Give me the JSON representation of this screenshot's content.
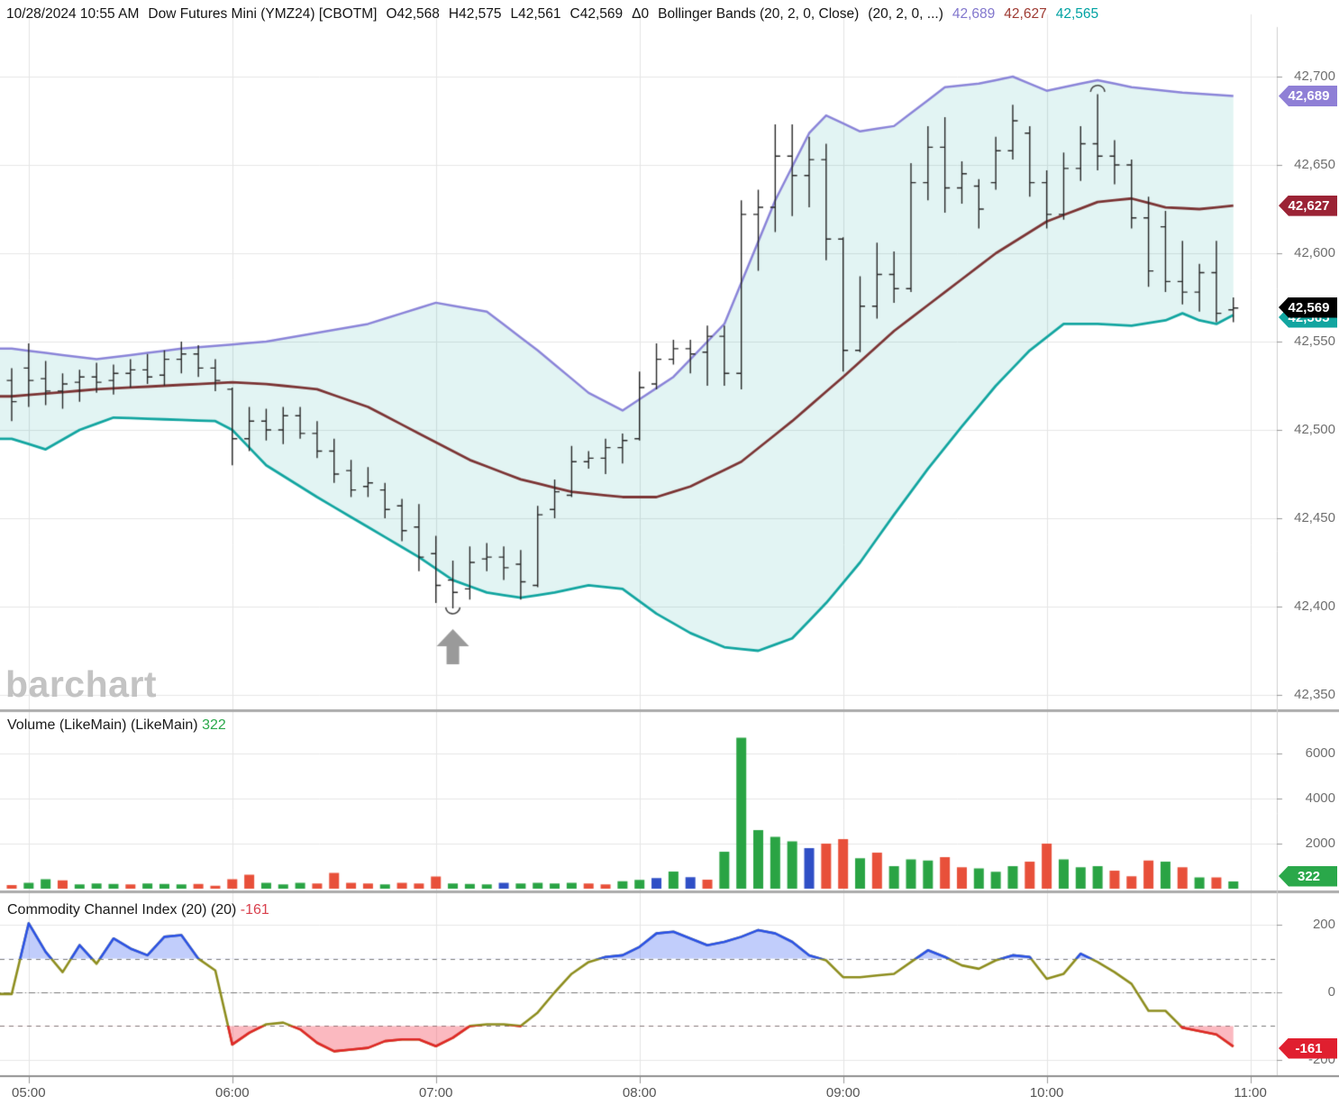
{
  "header": {
    "datetime": "10/28/2024 10:55 AM",
    "symbol": "Dow Futures Mini (YMZ24) [CBOTM]",
    "open": "O42,568",
    "high": "H42,575",
    "low": "L42,561",
    "close": "C42,569",
    "change": "Δ0",
    "study": "Bollinger Bands (20, 2, 0, Close)",
    "study_params": "(20, 2, 0, ...)",
    "band_upper_value": "42,689",
    "band_middle_value": "42,627",
    "band_lower_value": "42,565"
  },
  "watermark": "barchart",
  "panels": {
    "volume_title": "Volume (LikeMain)  (LikeMain)",
    "volume_value": "322",
    "cci_title": "Commodity Channel Index (20)  (20)",
    "cci_value": "-161"
  },
  "axes": {
    "price_ticks": [
      "42,700",
      "42,650",
      "42,600",
      "42,550",
      "42,500",
      "42,450",
      "42,400",
      "42,350"
    ],
    "price_tick_values": [
      42700,
      42650,
      42600,
      42550,
      42500,
      42450,
      42400,
      42350
    ],
    "volume_ticks": [
      "6000",
      "4000",
      "2000"
    ],
    "volume_tick_values": [
      6000,
      4000,
      2000
    ],
    "cci_ticks": [
      "200",
      "0",
      "-200"
    ],
    "cci_tick_values": [
      200,
      0,
      -200
    ],
    "time_ticks": [
      "05:00",
      "06:00",
      "07:00",
      "08:00",
      "09:00",
      "10:00",
      "11:00"
    ]
  },
  "badges": {
    "upper": {
      "label": "42,689",
      "color": "#8f7fd6"
    },
    "middle": {
      "label": "42,627",
      "color": "#9b2335"
    },
    "close": {
      "label": "42,569",
      "color": "#000000"
    },
    "lower": {
      "label": "42,565",
      "color": "#12a5a0"
    },
    "volume": {
      "label": "322",
      "color": "#2aa84a"
    },
    "cci": {
      "label": "-161",
      "color": "#e01f2f"
    }
  },
  "colors": {
    "band_upper": "#8a84d8",
    "band_middle": "#7b3434",
    "band_lower": "#12a5a0",
    "band_fill": "rgba(18,165,160,0.12)",
    "bar": "#262626",
    "vol_up": "#2aa444",
    "vol_down": "#e8503a",
    "vol_neutral": "#2f4fc6",
    "cci_line": "#8d8d1e",
    "cci_high": "#2b52e8",
    "cci_high_fill": "rgba(100,130,245,0.40)",
    "cci_low": "#e02828",
    "cci_low_fill": "rgba(247,100,115,0.45)",
    "grid": "#e6e6e6",
    "separator": "#ababab"
  },
  "chart_data": {
    "type": "ohlc+volume+cci",
    "title": "Dow Futures Mini (YMZ24) 5-minute bars with Bollinger Bands (20,2,0,Close)",
    "x_range": [
      "04:55",
      "10:55"
    ],
    "price_ylim": [
      42350,
      42700
    ],
    "volume_ylim": [
      0,
      8000
    ],
    "cci_ylim": [
      -230,
      240
    ],
    "cci_thresholds": {
      "upper": 100,
      "zero": 0,
      "lower": -100
    },
    "times": [
      "04:55",
      "05:00",
      "05:05",
      "05:10",
      "05:15",
      "05:20",
      "05:25",
      "05:30",
      "05:35",
      "05:40",
      "05:45",
      "05:50",
      "05:55",
      "06:00",
      "06:05",
      "06:10",
      "06:15",
      "06:20",
      "06:25",
      "06:30",
      "06:35",
      "06:40",
      "06:45",
      "06:50",
      "06:55",
      "07:00",
      "07:05",
      "07:10",
      "07:15",
      "07:20",
      "07:25",
      "07:30",
      "07:35",
      "07:40",
      "07:45",
      "07:50",
      "07:55",
      "08:00",
      "08:05",
      "08:10",
      "08:15",
      "08:20",
      "08:25",
      "08:30",
      "08:35",
      "08:40",
      "08:45",
      "08:50",
      "08:55",
      "09:00",
      "09:05",
      "09:10",
      "09:15",
      "09:20",
      "09:25",
      "09:30",
      "09:35",
      "09:40",
      "09:45",
      "09:50",
      "09:55",
      "10:00",
      "10:05",
      "10:10",
      "10:15",
      "10:20",
      "10:25",
      "10:30",
      "10:35",
      "10:40",
      "10:45",
      "10:50",
      "10:55"
    ],
    "ohlc": [
      [
        42528,
        42535,
        42505,
        42516
      ],
      [
        42535,
        42549,
        42513,
        42528
      ],
      [
        42529,
        42539,
        42514,
        42522
      ],
      [
        42522,
        42532,
        42512,
        42526
      ],
      [
        42527,
        42534,
        42516,
        42530
      ],
      [
        42530,
        42538,
        42521,
        42527
      ],
      [
        42528,
        42537,
        42520,
        42532
      ],
      [
        42532,
        42540,
        42524,
        42534
      ],
      [
        42534,
        42543,
        42526,
        42530
      ],
      [
        42531,
        42545,
        42525,
        42540
      ],
      [
        42540,
        42550,
        42532,
        42543
      ],
      [
        42543,
        42548,
        42530,
        42535
      ],
      [
        42535,
        42540,
        42522,
        42528
      ],
      [
        42523,
        42524,
        42480,
        42495
      ],
      [
        42495,
        42513,
        42488,
        42505
      ],
      [
        42505,
        42512,
        42494,
        42500
      ],
      [
        42500,
        42513,
        42492,
        42508
      ],
      [
        42508,
        42513,
        42495,
        42498
      ],
      [
        42498,
        42505,
        42484,
        42488
      ],
      [
        42488,
        42495,
        42470,
        42475
      ],
      [
        42477,
        42483,
        42462,
        42466
      ],
      [
        42468,
        42479,
        42462,
        42470
      ],
      [
        42466,
        42470,
        42450,
        42455
      ],
      [
        42457,
        42461,
        42437,
        42443
      ],
      [
        42445,
        42458,
        42420,
        42428
      ],
      [
        42430,
        42440,
        42402,
        42412
      ],
      [
        42415,
        42426,
        42399,
        42408
      ],
      [
        42410,
        42434,
        42404,
        42425
      ],
      [
        42427,
        42436,
        42420,
        42428
      ],
      [
        42428,
        42434,
        42415,
        42422
      ],
      [
        42424,
        42432,
        42404,
        42414
      ],
      [
        42412,
        42457,
        42411,
        42452
      ],
      [
        42455,
        42472,
        42450,
        42465
      ],
      [
        42463,
        42491,
        42462,
        42482
      ],
      [
        42482,
        42488,
        42478,
        42484
      ],
      [
        42484,
        42495,
        42475,
        42490
      ],
      [
        42490,
        42498,
        42481,
        42494
      ],
      [
        42495,
        42533,
        42494,
        42524
      ],
      [
        42526,
        42549,
        42523,
        42540
      ],
      [
        42540,
        42551,
        42537,
        42546
      ],
      [
        42546,
        42551,
        42532,
        42543
      ],
      [
        42544,
        42559,
        42525,
        42553
      ],
      [
        42553,
        42559,
        42525,
        42532
      ],
      [
        42532,
        42630,
        42523,
        42622
      ],
      [
        42622,
        42636,
        42590,
        42626
      ],
      [
        42626,
        42673,
        42612,
        42655
      ],
      [
        42655,
        42673,
        42621,
        42644
      ],
      [
        42644,
        42666,
        42626,
        42653
      ],
      [
        42653,
        42662,
        42596,
        42608
      ],
      [
        42608,
        42609,
        42533,
        42545
      ],
      [
        42545,
        42587,
        42544,
        42570
      ],
      [
        42570,
        42606,
        42563,
        42588
      ],
      [
        42588,
        42601,
        42572,
        42580
      ],
      [
        42580,
        42651,
        42578,
        42640
      ],
      [
        42640,
        42672,
        42630,
        42660
      ],
      [
        42660,
        42677,
        42623,
        42637
      ],
      [
        42637,
        42652,
        42628,
        42645
      ],
      [
        42638,
        42642,
        42614,
        42625
      ],
      [
        42640,
        42666,
        42636,
        42658
      ],
      [
        42658,
        42684,
        42653,
        42675
      ],
      [
        42668,
        42672,
        42632,
        42640
      ],
      [
        42640,
        42647,
        42614,
        42622
      ],
      [
        42622,
        42657,
        42619,
        42648
      ],
      [
        42648,
        42672,
        42641,
        42662
      ],
      [
        42662,
        42690,
        42647,
        42655
      ],
      [
        42655,
        42664,
        42639,
        42650
      ],
      [
        42650,
        42653,
        42614,
        42620
      ],
      [
        42620,
        42632,
        42581,
        42590
      ],
      [
        42615,
        42624,
        42578,
        42584
      ],
      [
        42584,
        42607,
        42571,
        42578
      ],
      [
        42578,
        42594,
        42567,
        42589
      ],
      [
        42589,
        42607,
        42561,
        42566
      ],
      [
        42568,
        42575,
        42561,
        42569
      ]
    ],
    "bollinger": {
      "upper_keypoints": [
        [
          0,
          42546
        ],
        [
          5,
          42540
        ],
        [
          10,
          42546
        ],
        [
          15,
          42550
        ],
        [
          21,
          42560
        ],
        [
          25,
          42572
        ],
        [
          28,
          42567
        ],
        [
          31,
          42545
        ],
        [
          34,
          42521
        ],
        [
          36,
          42511
        ],
        [
          39,
          42530
        ],
        [
          42,
          42560
        ],
        [
          45,
          42630
        ],
        [
          47,
          42668
        ],
        [
          48,
          42678
        ],
        [
          50,
          42669
        ],
        [
          52,
          42672
        ],
        [
          55,
          42694
        ],
        [
          57,
          42696
        ],
        [
          59,
          42700
        ],
        [
          61,
          42692
        ],
        [
          64,
          42698
        ],
        [
          66,
          42694
        ],
        [
          69,
          42691
        ],
        [
          72,
          42689
        ]
      ],
      "middle_keypoints": [
        [
          0,
          42519
        ],
        [
          5,
          42523
        ],
        [
          9,
          42525
        ],
        [
          13,
          42527
        ],
        [
          15,
          42526
        ],
        [
          18,
          42523
        ],
        [
          21,
          42513
        ],
        [
          24,
          42498
        ],
        [
          27,
          42483
        ],
        [
          30,
          42472
        ],
        [
          33,
          42465
        ],
        [
          36,
          42462
        ],
        [
          38,
          42462
        ],
        [
          40,
          42468
        ],
        [
          43,
          42482
        ],
        [
          46,
          42505
        ],
        [
          49,
          42530
        ],
        [
          52,
          42556
        ],
        [
          55,
          42578
        ],
        [
          58,
          42600
        ],
        [
          61,
          42618
        ],
        [
          64,
          42629
        ],
        [
          66,
          42631
        ],
        [
          68,
          42626
        ],
        [
          70,
          42625
        ],
        [
          72,
          42627
        ]
      ],
      "lower_keypoints": [
        [
          0,
          42495
        ],
        [
          2,
          42489
        ],
        [
          4,
          42500
        ],
        [
          6,
          42507
        ],
        [
          9,
          42506
        ],
        [
          12,
          42505
        ],
        [
          13,
          42500
        ],
        [
          15,
          42480
        ],
        [
          18,
          42462
        ],
        [
          21,
          42445
        ],
        [
          24,
          42428
        ],
        [
          26,
          42415
        ],
        [
          28,
          42408
        ],
        [
          30,
          42405
        ],
        [
          32,
          42408
        ],
        [
          34,
          42412
        ],
        [
          36,
          42410
        ],
        [
          38,
          42396
        ],
        [
          40,
          42385
        ],
        [
          42,
          42377
        ],
        [
          44,
          42375
        ],
        [
          46,
          42382
        ],
        [
          48,
          42402
        ],
        [
          50,
          42425
        ],
        [
          52,
          42452
        ],
        [
          54,
          42478
        ],
        [
          56,
          42502
        ],
        [
          58,
          42525
        ],
        [
          60,
          42545
        ],
        [
          62,
          42560
        ],
        [
          64,
          42560
        ],
        [
          66,
          42559
        ],
        [
          68,
          42562
        ],
        [
          69,
          42566
        ],
        [
          70,
          42562
        ],
        [
          71,
          42560
        ],
        [
          72,
          42565
        ]
      ]
    },
    "volume": {
      "values": [
        160,
        260,
        420,
        370,
        190,
        230,
        210,
        190,
        230,
        210,
        190,
        210,
        130,
        420,
        620,
        260,
        190,
        260,
        230,
        700,
        260,
        230,
        190,
        260,
        230,
        540,
        230,
        210,
        190,
        260,
        230,
        260,
        230,
        260,
        230,
        190,
        330,
        390,
        470,
        760,
        510,
        400,
        1640,
        6700,
        2600,
        2300,
        2100,
        1800,
        2000,
        2200,
        1350,
        1600,
        1000,
        1300,
        1250,
        1400,
        950,
        900,
        750,
        1000,
        1200,
        2000,
        1300,
        950,
        1000,
        800,
        550,
        1250,
        1200,
        950,
        500,
        500,
        322
      ],
      "colors": [
        "r",
        "g",
        "g",
        "r",
        "g",
        "g",
        "g",
        "r",
        "g",
        "g",
        "g",
        "r",
        "r",
        "r",
        "r",
        "g",
        "g",
        "g",
        "r",
        "r",
        "r",
        "r",
        "g",
        "r",
        "r",
        "r",
        "g",
        "g",
        "g",
        "b",
        "g",
        "g",
        "g",
        "g",
        "r",
        "r",
        "g",
        "g",
        "b",
        "g",
        "b",
        "r",
        "g",
        "g",
        "g",
        "g",
        "g",
        "b",
        "r",
        "r",
        "g",
        "r",
        "g",
        "g",
        "g",
        "r",
        "r",
        "g",
        "g",
        "g",
        "r",
        "r",
        "g",
        "g",
        "g",
        "r",
        "r",
        "r",
        "g",
        "r",
        "g",
        "r",
        "g"
      ]
    },
    "cci": {
      "values": [
        -5,
        205,
        120,
        60,
        140,
        85,
        160,
        130,
        110,
        165,
        170,
        100,
        65,
        -155,
        -120,
        -95,
        -90,
        -110,
        -150,
        -175,
        -170,
        -165,
        -145,
        -140,
        -140,
        -160,
        -135,
        -100,
        -95,
        -95,
        -100,
        -60,
        0,
        55,
        90,
        105,
        110,
        135,
        175,
        180,
        160,
        140,
        150,
        165,
        185,
        175,
        150,
        110,
        95,
        45,
        45,
        50,
        55,
        90,
        125,
        105,
        80,
        70,
        95,
        110,
        105,
        40,
        55,
        115,
        90,
        60,
        25,
        -55,
        -55,
        -105,
        -115,
        -125,
        -161
      ]
    },
    "annotations": {
      "up_arrow_time": "07:05",
      "low_arc_time": "07:05",
      "low_arc_price": 42398,
      "high_arc_time": "10:15",
      "high_arc_price": 42694
    }
  }
}
